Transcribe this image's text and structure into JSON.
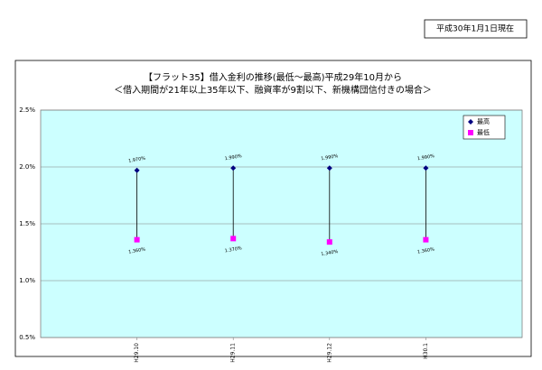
{
  "header": {
    "date_note": "平成30年1月1日現在"
  },
  "chart_data": {
    "type": "high-low",
    "title": [
      "【フラット35】借入金利の推移(最低～最高)平成29年10月から",
      "＜借入期間が21年以上35年以下、融資率が9割以下、新機構団信付きの場合＞"
    ],
    "categories": [
      "H29.10",
      "H29.11",
      "H29.12",
      "H30.1"
    ],
    "series": [
      {
        "name": "最高",
        "color": "#000080",
        "marker": "diamond",
        "values": [
          1.97,
          1.99,
          1.99,
          1.99
        ],
        "value_labels": [
          "1.970%",
          "1.990%",
          "1.990%",
          "1.990%"
        ]
      },
      {
        "name": "最低",
        "color": "#ff00ff",
        "marker": "square",
        "values": [
          1.36,
          1.37,
          1.34,
          1.36
        ],
        "value_labels": [
          "1.360%",
          "1.370%",
          "1.340%",
          "1.360%"
        ]
      }
    ],
    "ylim": [
      0.5,
      2.5
    ],
    "yticks": [
      {
        "value": 0.5,
        "label": "0.5%"
      },
      {
        "value": 1.0,
        "label": "1.0%"
      },
      {
        "value": 1.5,
        "label": "1.5%"
      },
      {
        "value": 2.0,
        "label": "2.0%"
      },
      {
        "value": 2.5,
        "label": "2.5%"
      }
    ],
    "grid": true,
    "legend": "top-right",
    "plot_background": "#ccffff"
  }
}
